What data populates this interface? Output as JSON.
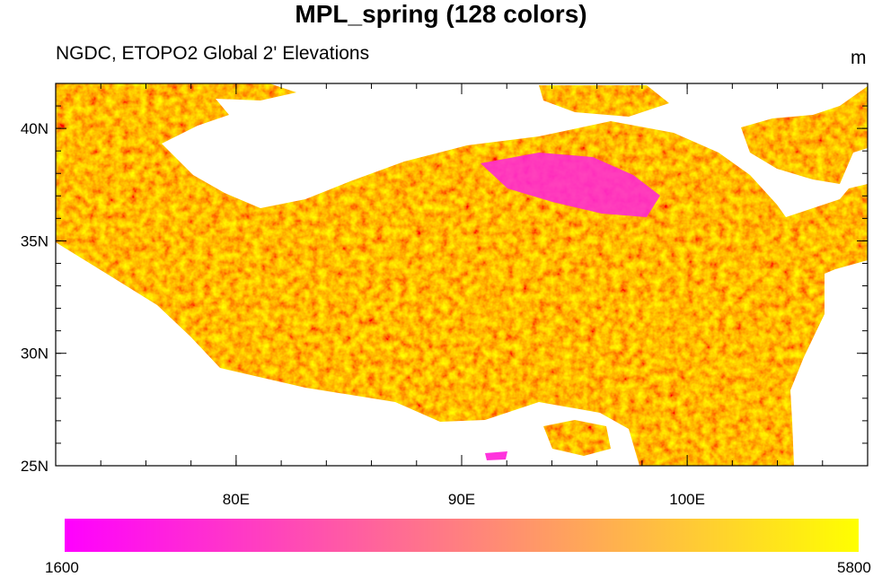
{
  "title": "MPL_spring (128 colors)",
  "subtitle": "NGDC, ETOPO2 Global 2' Elevations",
  "units": "m",
  "map": {
    "projection": "cylindrical-equidistant",
    "lon_range": [
      72,
      108
    ],
    "lat_range": [
      25,
      42
    ],
    "lon_ticks": [
      80,
      90,
      100
    ],
    "lon_tick_labels": [
      "80E",
      "90E",
      "100E"
    ],
    "lat_ticks": [
      25,
      30,
      35,
      40
    ],
    "lat_tick_labels": [
      "25N",
      "30N",
      "35N",
      "40N"
    ],
    "masked_below_m": 1600,
    "colors": {
      "low": "#ff00ff",
      "high": "#ffff00",
      "missing": "#ffffff"
    }
  },
  "colorbar": {
    "min": 1600,
    "max": 5800,
    "min_label": "1600",
    "max_label": "5800",
    "n_colors": 128,
    "orientation": "horizontal"
  }
}
